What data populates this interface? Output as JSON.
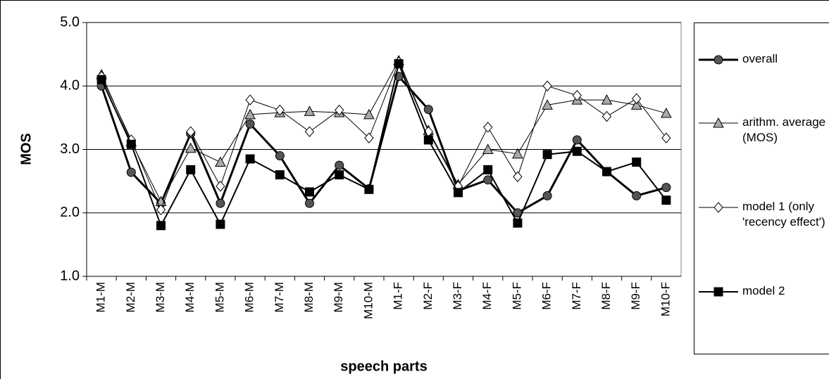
{
  "chart_data": {
    "type": "line",
    "y_label": "MOS",
    "x_label": "speech parts",
    "categories": [
      "M1-M",
      "M2-M",
      "M3-M",
      "M4-M",
      "M5-M",
      "M6-M",
      "M7-M",
      "M8-M",
      "M9-M",
      "M10-M",
      "M1-F",
      "M2-F",
      "M3-F",
      "M4-F",
      "M5-F",
      "M6-F",
      "M7-F",
      "M8-F",
      "M9-F",
      "M10-F"
    ],
    "ylim": [
      1,
      5
    ],
    "yticks": [
      {
        "value": 1,
        "label": "1.0"
      },
      {
        "value": 2,
        "label": "2.0"
      },
      {
        "value": 3,
        "label": "3.0"
      },
      {
        "value": 4,
        "label": "4.0"
      },
      {
        "value": 5,
        "label": "5.0"
      }
    ],
    "grid": true,
    "series": [
      {
        "name": "overall",
        "color": "#555555",
        "marker": "circle",
        "values": [
          4.0,
          2.64,
          2.15,
          3.25,
          2.15,
          3.4,
          2.9,
          2.15,
          2.75,
          2.38,
          4.15,
          3.63,
          2.35,
          2.52,
          2.0,
          2.27,
          3.15,
          2.65,
          2.27,
          2.4
        ]
      },
      {
        "name": "arithm. average (MOS)",
        "color": "#aaaaaa",
        "marker": "triangle",
        "values": [
          4.18,
          3.12,
          2.18,
          3.02,
          2.8,
          3.55,
          3.58,
          3.6,
          3.58,
          3.55,
          4.4,
          3.3,
          2.45,
          3.0,
          2.93,
          3.7,
          3.78,
          3.78,
          3.7,
          3.57
        ]
      },
      {
        "name": "model 1 (only 'recency effect')",
        "color": "#ffffff",
        "marker": "diamond",
        "values": [
          4.15,
          3.15,
          2.05,
          3.28,
          2.42,
          3.78,
          3.62,
          3.28,
          3.62,
          3.18,
          4.38,
          3.28,
          2.42,
          3.35,
          2.57,
          4.0,
          3.85,
          3.52,
          3.8,
          3.18
        ]
      },
      {
        "name": "model 2",
        "color": "#000000",
        "marker": "square",
        "values": [
          4.1,
          3.08,
          1.8,
          2.68,
          1.82,
          2.85,
          2.6,
          2.33,
          2.6,
          2.37,
          4.35,
          3.15,
          2.32,
          2.68,
          1.84,
          2.92,
          2.97,
          2.65,
          2.8,
          2.2
        ]
      }
    ]
  }
}
